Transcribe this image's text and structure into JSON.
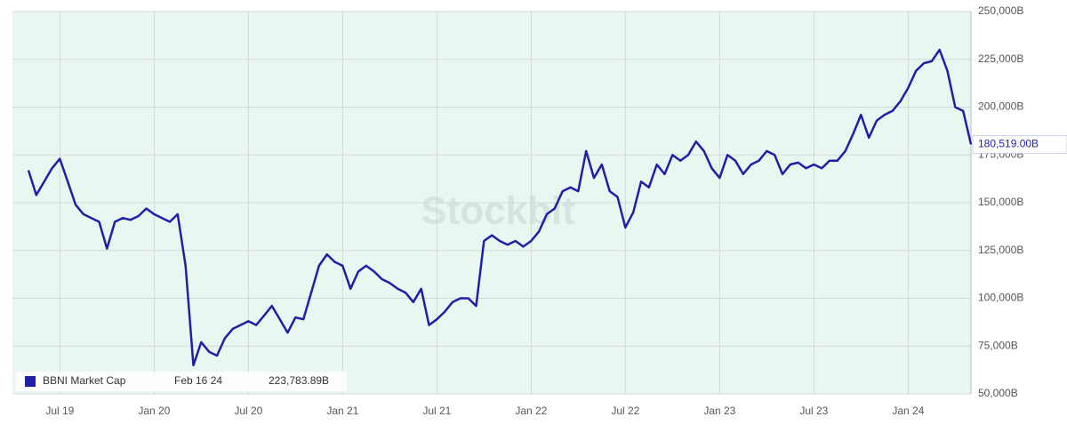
{
  "chart_data": {
    "type": "line",
    "watermark": "Stockbit",
    "categories": [
      null,
      null,
      null,
      null,
      "Jul 19",
      null,
      null,
      null,
      null,
      null,
      null,
      null,
      null,
      null,
      null,
      null,
      "Jan 20",
      null,
      null,
      null,
      null,
      null,
      null,
      null,
      null,
      null,
      null,
      null,
      "Jul 20",
      null,
      null,
      null,
      null,
      null,
      null,
      null,
      null,
      null,
      null,
      null,
      "Jan 21",
      null,
      null,
      null,
      null,
      null,
      null,
      null,
      null,
      null,
      null,
      null,
      "Jul 21",
      null,
      null,
      null,
      null,
      null,
      null,
      null,
      null,
      null,
      null,
      null,
      "Jan 22",
      null,
      null,
      null,
      null,
      null,
      null,
      null,
      null,
      null,
      null,
      null,
      "Jul 22",
      null,
      null,
      null,
      null,
      null,
      null,
      null,
      null,
      null,
      null,
      null,
      "Jan 23",
      null,
      null,
      null,
      null,
      null,
      null,
      null,
      null,
      null,
      null,
      null,
      "Jul 23",
      null,
      null,
      null,
      null,
      null,
      null,
      null,
      null,
      null,
      null,
      null,
      "Jan 24",
      null,
      null,
      null,
      null,
      null,
      null,
      null,
      null
    ],
    "series": [
      {
        "name": "BBNI Market Cap",
        "color": "#1f1fa8",
        "axis": "y2",
        "values": [
          167000,
          154000,
          161000,
          168000,
          173000,
          161000,
          149000,
          144000,
          142000,
          140000,
          126000,
          140000,
          142000,
          141000,
          143000,
          147000,
          144000,
          142000,
          140000,
          144000,
          117000,
          65000,
          77000,
          72000,
          70000,
          79000,
          84000,
          86000,
          88000,
          86000,
          91000,
          96000,
          89000,
          82000,
          90000,
          89000,
          103000,
          117000,
          123000,
          119000,
          117000,
          105000,
          114000,
          117000,
          114000,
          110000,
          108000,
          105000,
          103000,
          98000,
          105000,
          86000,
          89000,
          93000,
          98000,
          100000,
          100000,
          96000,
          130000,
          133000,
          130000,
          128000,
          130000,
          127000,
          130000,
          135000,
          144000,
          147000,
          156000,
          158000,
          156000,
          177000,
          163000,
          170000,
          156000,
          153000,
          137000,
          145000,
          161000,
          158000,
          170000,
          165000,
          175000,
          172000,
          175000,
          182000,
          177000,
          168000,
          163000,
          175000,
          172000,
          165000,
          170000,
          172000,
          177000,
          175000,
          165000,
          170000,
          171000,
          168000,
          170000,
          168000,
          172000,
          172000,
          177000,
          186000,
          196000,
          184000,
          193000,
          196000,
          198000,
          203000,
          210000,
          219000,
          223000,
          224000,
          230000,
          219000,
          200000,
          198000,
          180519
        ]
      }
    ],
    "last_value_label": "180,519.00B",
    "tooltip": {
      "date": "Feb 16 24",
      "value_label": "223,783.89B"
    },
    "y2lim": [
      50000,
      250000
    ],
    "y2ticks": [
      {
        "value": 50000,
        "label": "50,000B"
      },
      {
        "value": 75000,
        "label": "75,000B"
      },
      {
        "value": 100000,
        "label": "100,000B"
      },
      {
        "value": 125000,
        "label": "125,000B"
      },
      {
        "value": 150000,
        "label": "150,000B"
      },
      {
        "value": 175000,
        "label": "175,000B"
      },
      {
        "value": 200000,
        "label": "200,000B"
      },
      {
        "value": 225000,
        "label": "225,000B"
      },
      {
        "value": 250000,
        "label": "250,000B"
      }
    ],
    "grid": true,
    "background": "#eaf7f1"
  }
}
